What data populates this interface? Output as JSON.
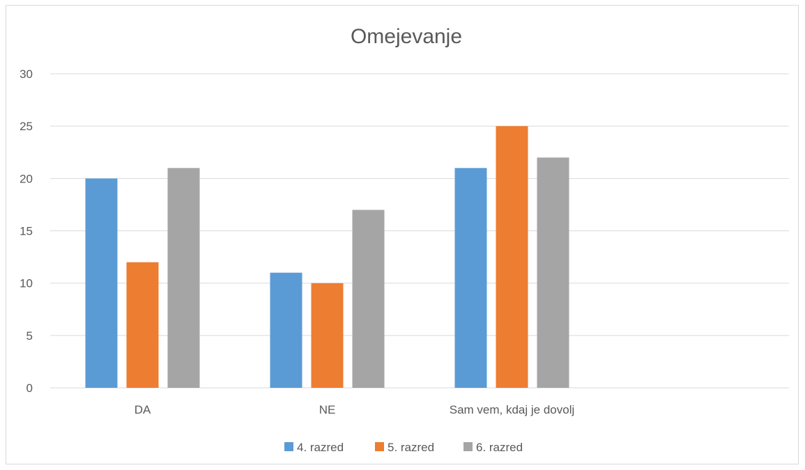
{
  "chart_data": {
    "type": "bar",
    "title": "Omejevanje",
    "xlabel": "",
    "ylabel": "",
    "categories": [
      "DA",
      "NE",
      "Sam vem, kdaj je dovolj",
      ""
    ],
    "series": [
      {
        "name": "4. razred",
        "values": [
          20,
          11,
          21,
          null
        ],
        "color": "#5b9bd5"
      },
      {
        "name": "5. razred",
        "values": [
          12,
          10,
          25,
          null
        ],
        "color": "#ed7d31"
      },
      {
        "name": "6. razred",
        "values": [
          21,
          17,
          22,
          null
        ],
        "color": "#a5a5a5"
      }
    ],
    "ylim": [
      0,
      30
    ],
    "yticks": [
      "0",
      "5",
      "10",
      "15",
      "20",
      "25",
      "30"
    ],
    "grid": true,
    "legend_position": "bottom"
  }
}
